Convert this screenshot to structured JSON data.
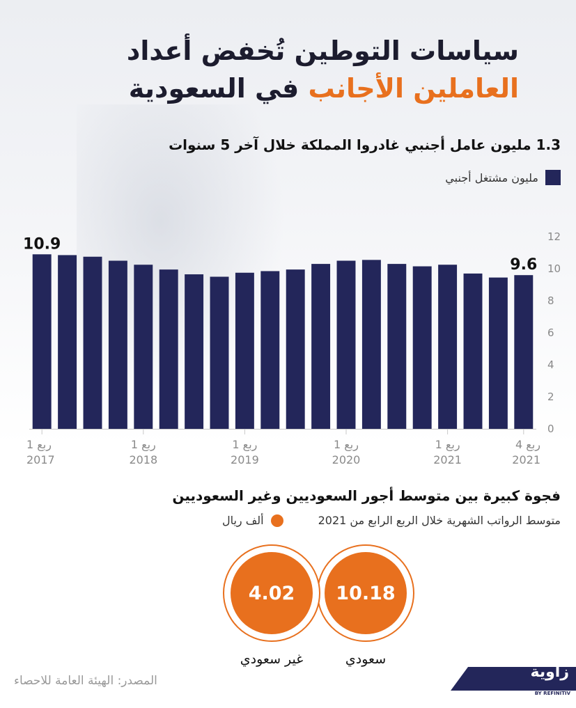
{
  "title": {
    "line1": "سياسات التوطين تُخفض أعداد",
    "line2_accent": "العاملين الأجانب",
    "line2_rest": " في السعودية"
  },
  "section1": {
    "subtitle": "1.3 مليون عامل أجنبي غادروا المملكة خلال آخر 5 سنوات",
    "legend": "مليون مشتغل أجنبي"
  },
  "chart_data": [
    {
      "type": "bar",
      "title": "",
      "series_name": "مليون مشتغل أجنبي",
      "color": "#23265a",
      "values": [
        10.9,
        10.85,
        10.75,
        10.5,
        10.25,
        9.95,
        9.65,
        9.5,
        9.75,
        9.85,
        9.95,
        10.3,
        10.5,
        10.55,
        10.3,
        10.15,
        10.25,
        9.7,
        9.45,
        9.6
      ],
      "annotations": [
        {
          "index": 0,
          "text": "10.9"
        },
        {
          "index": 19,
          "text": "9.6"
        }
      ],
      "y_ticks": [
        "0",
        "2",
        "4",
        "6",
        "8",
        "10",
        "12"
      ],
      "ylim": [
        0,
        12
      ],
      "x_labels": [
        {
          "index": 0,
          "quarter": "ربع 1",
          "year": "2017"
        },
        {
          "index": 4,
          "quarter": "ربع 1",
          "year": "2018"
        },
        {
          "index": 8,
          "quarter": "ربع 1",
          "year": "2019"
        },
        {
          "index": 12,
          "quarter": "ربع 1",
          "year": "2020"
        },
        {
          "index": 16,
          "quarter": "ربع 1",
          "year": "2021"
        },
        {
          "index": 19,
          "quarter": "ربع 4",
          "year": "2021"
        }
      ],
      "grid": false
    },
    {
      "type": "table",
      "title": "فجوة كبيرة بين متوسط أجور السعوديين وغير السعوديين",
      "subtitle": "متوسط الرواتب الشهرية خلال الربع الرابع من 2021",
      "unit": "ألف ريال",
      "categories": [
        "سعودي",
        "غير سعودي"
      ],
      "values": [
        "10.18",
        "4.02"
      ]
    }
  ],
  "source": "المصدر: الهيئة العامة للاحصاء",
  "logo": {
    "name": "زاوية",
    "sub": "BY REFINITIV"
  },
  "colors": {
    "navy": "#23265a",
    "orange": "#e8701e"
  }
}
